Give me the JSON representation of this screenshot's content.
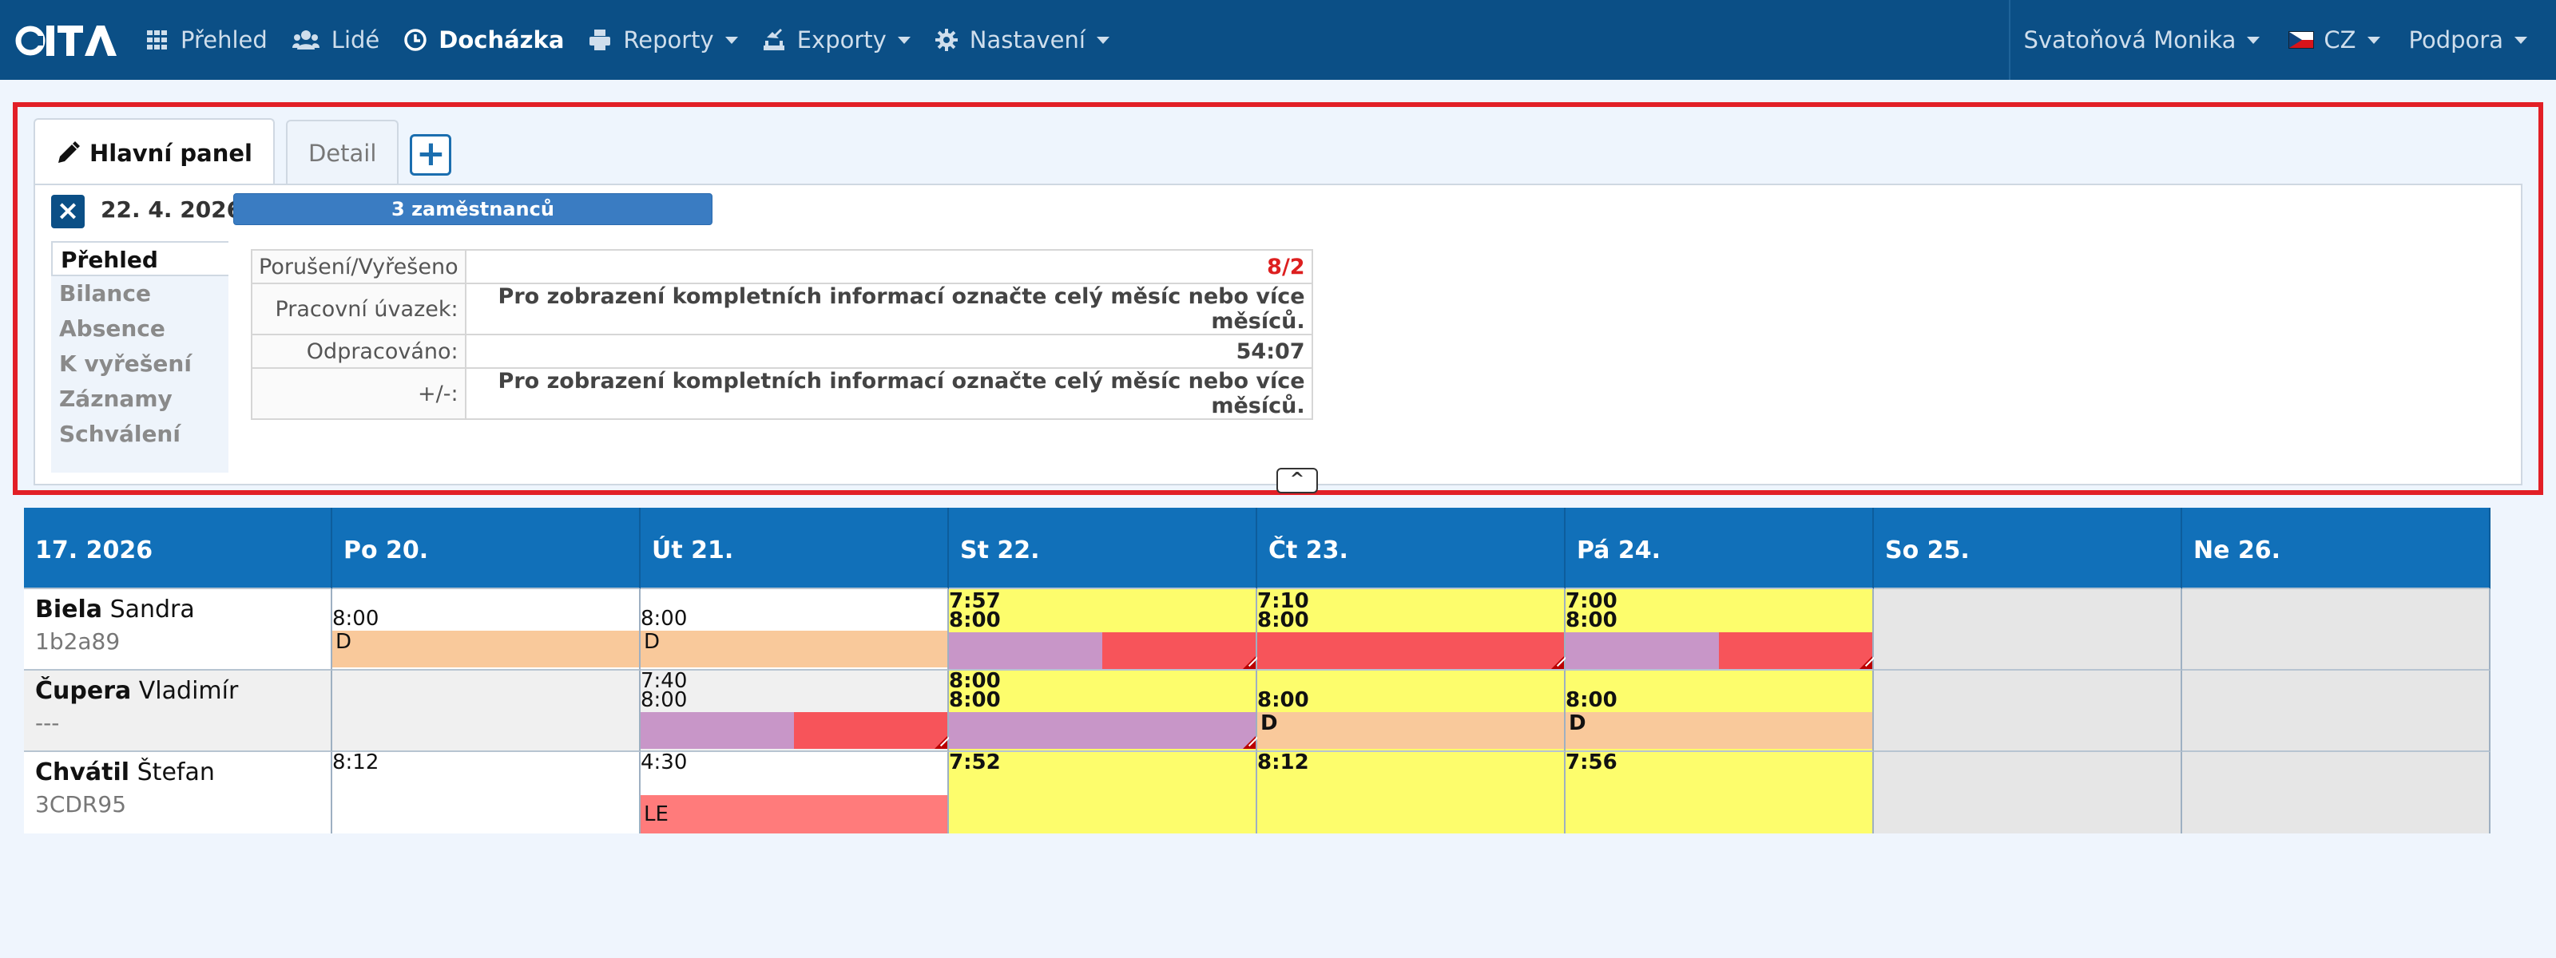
{
  "nav": {
    "logo": "iTA",
    "items": [
      {
        "label": "Přehled",
        "icon": "grid-icon"
      },
      {
        "label": "Lidé",
        "icon": "users-icon"
      },
      {
        "label": "Docházka",
        "icon": "clock-icon"
      },
      {
        "label": "Reporty",
        "icon": "print-icon"
      },
      {
        "label": "Exporty",
        "icon": "export-icon"
      },
      {
        "label": "Nastavení",
        "icon": "gear-icon"
      }
    ],
    "user": "Svatoňová Monika",
    "lang": "CZ",
    "support": "Podpora"
  },
  "panel": {
    "tabs": [
      {
        "label": "Hlavní panel",
        "icon": "pencil-icon"
      },
      {
        "label": "Detail"
      }
    ],
    "add_tab": "+",
    "close": "×",
    "date": "22. 4. 2026",
    "employees": "3 zaměstnanců",
    "side_nav": [
      "Přehled",
      "Bilance",
      "Absence",
      "K vyřešení",
      "Záznamy",
      "Schválení"
    ],
    "info": [
      {
        "key": "Porušení/Vyřešeno",
        "value": "8/2"
      },
      {
        "key": "Pracovní úvazek:",
        "value": "Pro zobrazení kompletních informací označte celý měsíc nebo více měsíců."
      },
      {
        "key": "Odpracováno:",
        "value": "54:07"
      },
      {
        "key": "+/-:",
        "value": "Pro zobrazení kompletních informací označte celý měsíc nebo více měsíců."
      }
    ],
    "toggle": "^"
  },
  "grid": {
    "headers": [
      "17. 2026",
      "Po 20.",
      "Út 21.",
      "St 22.",
      "Čt 23.",
      "Pá 24.",
      "So 25.",
      "Ne 26."
    ],
    "rows": [
      {
        "last": "Biela",
        "first": "Sandra",
        "code": "1b2a89",
        "days": {
          "mon": {
            "t1": "8:00",
            "band": "D"
          },
          "tue": {
            "t1": "8:00",
            "band": "D"
          },
          "wed": {
            "t1": "7:57",
            "t2": "8:00"
          },
          "thu": {
            "t1": "7:10",
            "t2": "8:00"
          },
          "fri": {
            "t1": "7:00",
            "t2": "8:00"
          }
        }
      },
      {
        "last": "Čupera",
        "first": "Vladimír",
        "code": "---",
        "days": {
          "tue": {
            "t1": "7:40",
            "t2": "8:00"
          },
          "wed": {
            "t1": "8:00",
            "t2": "8:00"
          },
          "thu": {
            "t1": "8:00",
            "band": "D"
          },
          "fri": {
            "t1": "8:00",
            "band": "D"
          }
        }
      },
      {
        "last": "Chvátil",
        "first": "Štefan",
        "code": "3CDR95",
        "days": {
          "mon": {
            "t1": "8:12"
          },
          "tue": {
            "t1": "4:30",
            "band": "LE"
          },
          "wed": {
            "t1": "7:52"
          },
          "thu": {
            "t1": "8:12"
          },
          "fri": {
            "t1": "7:56"
          }
        }
      }
    ]
  },
  "colors": {
    "navbar": "#0b4f86",
    "header": "#1170b9",
    "highlight_border": "#e21f26",
    "yellow": "#fdfd6c",
    "orange": "#f9c99b",
    "purple": "#c896c8",
    "red": "#f7545a"
  }
}
